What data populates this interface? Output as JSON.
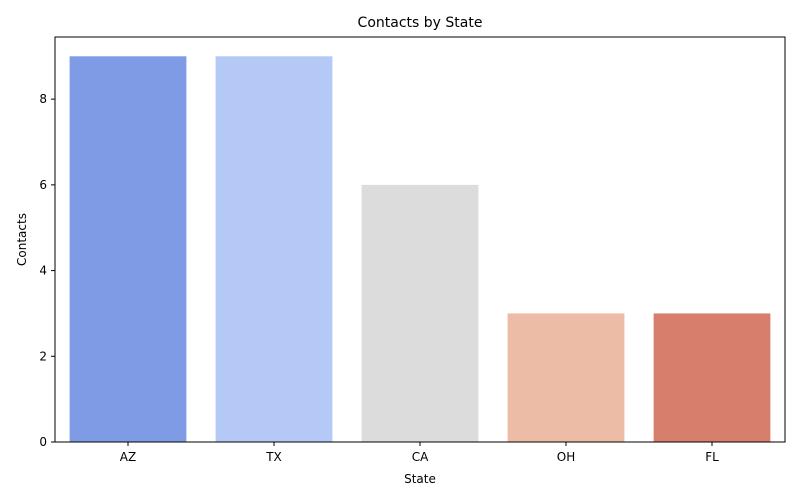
{
  "chart_data": {
    "type": "bar",
    "title": "Contacts by State",
    "xlabel": "State",
    "ylabel": "Contacts",
    "categories": [
      "AZ",
      "TX",
      "CA",
      "OH",
      "FL"
    ],
    "values": [
      9,
      9,
      6,
      3,
      3
    ],
    "colors": [
      "#7f9be6",
      "#b4c9f5",
      "#dcdcdc",
      "#edbca6",
      "#d77f6c"
    ],
    "yticks": [
      0,
      2,
      4,
      6,
      8
    ],
    "ylim": [
      0,
      9.45
    ],
    "grid": false,
    "legend": "none"
  }
}
